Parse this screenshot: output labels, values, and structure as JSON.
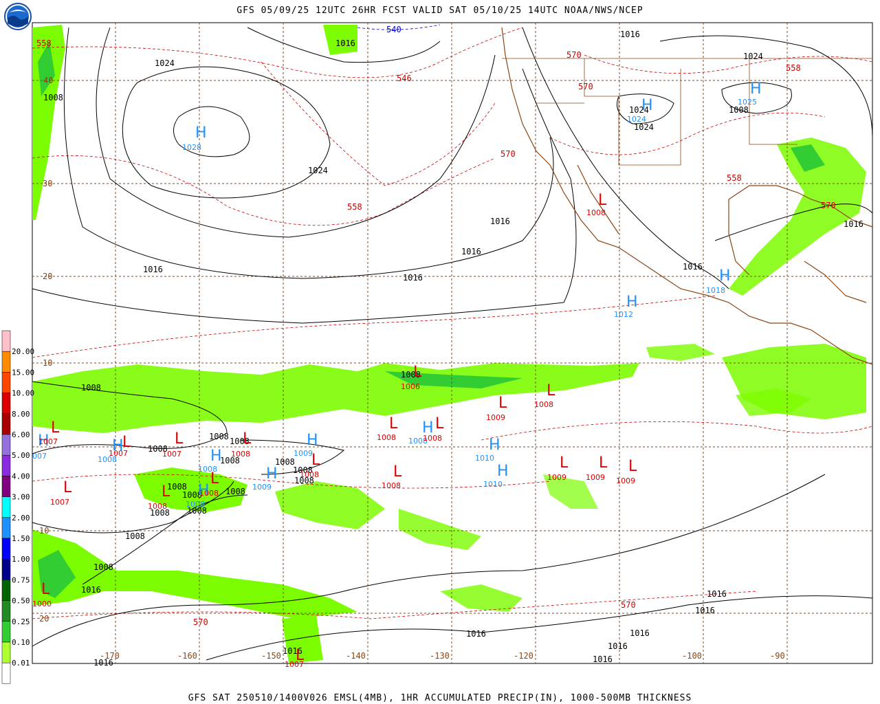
{
  "header": {
    "title": "GFS 05/09/25 12UTC 26HR FCST VALID SAT 05/10/25 14UTC NOAA/NWS/NCEP",
    "logo_text": "NOAA"
  },
  "footer": {
    "caption": "GFS SAT 250510/1400V026 EMSL(4MB), 1HR ACCUMULATED PRECIP(IN), 1000-500MB THICKNESS"
  },
  "colors": {
    "precip_green": "#7cfc00",
    "isobar": "#000000",
    "thickness": "#cc0000",
    "thickness_cold": "#0000cc",
    "high": "#1e90ff",
    "low": "#dd0000",
    "grid": "#8b4513",
    "coast": "#8b4513"
  },
  "legend": {
    "values": [
      "20.00",
      "15.00",
      "10.00",
      "8.00",
      "6.00",
      "5.00",
      "4.00",
      "3.00",
      "2.00",
      "1.50",
      "1.00",
      "0.75",
      "0.50",
      "0.25",
      "0.10",
      "0.01"
    ],
    "colors": [
      "#ffc0cb",
      "#ff8c00",
      "#ff4500",
      "#dd0000",
      "#aa0000",
      "#9370db",
      "#8a2be2",
      "#800080",
      "#00ffff",
      "#1e90ff",
      "#0000ff",
      "#00008b",
      "#006400",
      "#228b22",
      "#32cd32",
      "#adff2f"
    ]
  },
  "lat_labels": [
    "40",
    "30",
    "20",
    "10",
    "10",
    "20"
  ],
  "lon_labels": [
    "-170",
    "-160",
    "-150",
    "-140",
    "-130",
    "-120",
    "-100",
    "-90"
  ],
  "isobar_labels": [
    "1024",
    "1024",
    "1024",
    "1024",
    "1024",
    "1016",
    "1016",
    "1016",
    "1016",
    "1016",
    "1016",
    "1016",
    "1016",
    "1016",
    "1016",
    "1016",
    "1016",
    "1008",
    "1008",
    "1008",
    "1008",
    "1008",
    "1008",
    "1008",
    "1008",
    "1008",
    "1008",
    "1008",
    "1008",
    "1008",
    "1008",
    "1008",
    "1008",
    "1008",
    "1008",
    "1016",
    "1016",
    "1016",
    "1016",
    "1016"
  ],
  "thickness_labels": [
    "558",
    "546",
    "540",
    "570",
    "570",
    "570",
    "558",
    "558",
    "558",
    "570",
    "570",
    "570"
  ],
  "highs": [
    {
      "value": "1028"
    },
    {
      "value": "1024"
    },
    {
      "value": "1025"
    },
    {
      "value": "1012"
    },
    {
      "value": "1018"
    },
    {
      "value": "1008"
    },
    {
      "value": "1009"
    },
    {
      "value": "1008"
    },
    {
      "value": "1010"
    },
    {
      "value": "1010"
    },
    {
      "value": "1009"
    },
    {
      "value": "1008"
    },
    {
      "value": "1008"
    },
    {
      "value": "007"
    }
  ],
  "lows": [
    {
      "value": "1008"
    },
    {
      "value": "1006"
    },
    {
      "value": "1009"
    },
    {
      "value": "1008"
    },
    {
      "value": "1008"
    },
    {
      "value": "1008"
    },
    {
      "value": "1008"
    },
    {
      "value": "1009"
    },
    {
      "value": "1009"
    },
    {
      "value": "1009"
    },
    {
      "value": "1007"
    },
    {
      "value": "1007"
    },
    {
      "value": "1007"
    },
    {
      "value": "1007"
    },
    {
      "value": "1008"
    },
    {
      "value": "1008"
    },
    {
      "value": "1008"
    },
    {
      "value": "1008"
    },
    {
      "value": "1000"
    },
    {
      "value": "1007"
    }
  ]
}
